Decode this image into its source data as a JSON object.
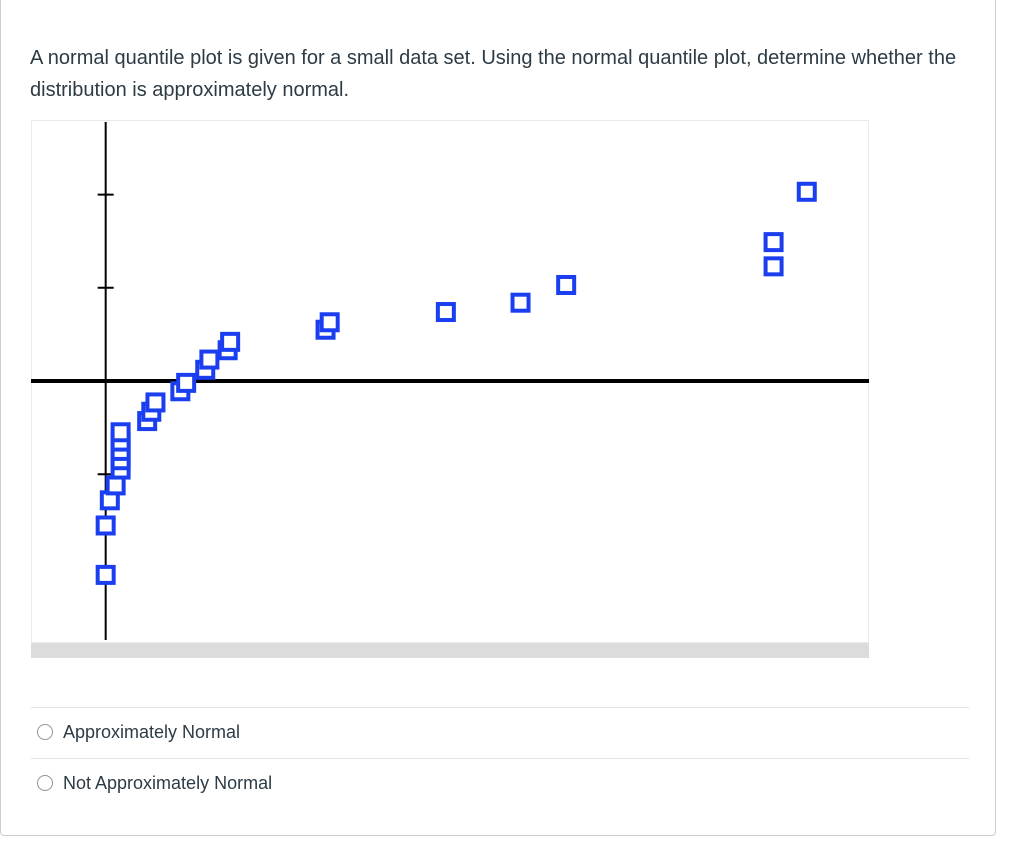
{
  "question": {
    "text": "A normal quantile plot is given for a small data set. Using the normal quantile plot, determine whether the distribution is approximately normal."
  },
  "answers": [
    {
      "label": "Approximately Normal",
      "selected": false
    },
    {
      "label": "Not Approximately Normal",
      "selected": false
    }
  ],
  "colors": {
    "point": "#1a3ef0",
    "axis": "#000000",
    "scroll_track": "#dcdcdc",
    "frame": "#eaeaea"
  },
  "chart_data": {
    "type": "scatter",
    "title": "",
    "xlabel": "",
    "ylabel": "",
    "x_axis": {
      "value": 0
    },
    "y_axis": {
      "value": 0
    },
    "y_ticks": [
      2,
      1,
      -1
    ],
    "xlim": [
      -0.9,
      9.2
    ],
    "ylim": [
      -2.8,
      2.8
    ],
    "grid": false,
    "points": [
      {
        "x": 0.0,
        "y": -2.08
      },
      {
        "x": 0.0,
        "y": -1.55
      },
      {
        "x": 0.05,
        "y": -1.28
      },
      {
        "x": 0.12,
        "y": -1.12
      },
      {
        "x": 0.18,
        "y": -0.95
      },
      {
        "x": 0.18,
        "y": -0.85
      },
      {
        "x": 0.18,
        "y": -0.75
      },
      {
        "x": 0.18,
        "y": -0.65
      },
      {
        "x": 0.18,
        "y": -0.55
      },
      {
        "x": 0.5,
        "y": -0.43
      },
      {
        "x": 0.55,
        "y": -0.33
      },
      {
        "x": 0.6,
        "y": -0.23
      },
      {
        "x": 0.9,
        "y": -0.11
      },
      {
        "x": 0.97,
        "y": -0.02
      },
      {
        "x": 1.2,
        "y": 0.12
      },
      {
        "x": 1.25,
        "y": 0.23
      },
      {
        "x": 1.47,
        "y": 0.33
      },
      {
        "x": 1.5,
        "y": 0.42
      },
      {
        "x": 2.65,
        "y": 0.55
      },
      {
        "x": 2.7,
        "y": 0.63
      },
      {
        "x": 4.1,
        "y": 0.74
      },
      {
        "x": 5.0,
        "y": 0.84
      },
      {
        "x": 5.55,
        "y": 1.03
      },
      {
        "x": 8.05,
        "y": 1.23
      },
      {
        "x": 8.05,
        "y": 1.49
      },
      {
        "x": 8.45,
        "y": 2.03
      }
    ]
  }
}
